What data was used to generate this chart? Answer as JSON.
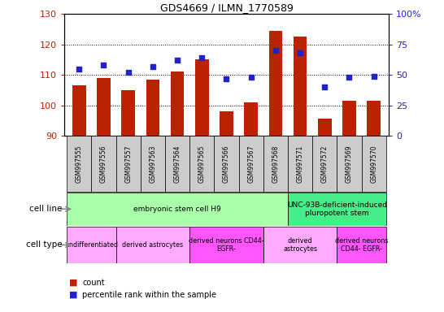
{
  "title": "GDS4669 / ILMN_1770589",
  "samples": [
    "GSM997555",
    "GSM997556",
    "GSM997557",
    "GSM997563",
    "GSM997564",
    "GSM997565",
    "GSM997566",
    "GSM997567",
    "GSM997568",
    "GSM997571",
    "GSM997572",
    "GSM997569",
    "GSM997570"
  ],
  "bar_values": [
    106.5,
    109.0,
    105.0,
    108.5,
    111.0,
    115.0,
    98.0,
    101.0,
    124.5,
    122.5,
    95.5,
    101.5,
    101.5
  ],
  "percentile_values": [
    55,
    58,
    52,
    57,
    62,
    64,
    47,
    48,
    70,
    68,
    40,
    48,
    49
  ],
  "bar_bottom": 90,
  "ylim_left": [
    90,
    130
  ],
  "ylim_right": [
    0,
    100
  ],
  "yticks_left": [
    90,
    100,
    110,
    120,
    130
  ],
  "yticks_right": [
    0,
    25,
    50,
    75,
    100
  ],
  "bar_color": "#BB2200",
  "dot_color": "#2222CC",
  "tick_bg_color": "#CCCCCC",
  "cell_line_groups": [
    {
      "label": "embryonic stem cell H9",
      "start": 0,
      "end": 8,
      "color": "#AAFFAA"
    },
    {
      "label": "UNC-93B-deficient-induced\npluropotent stem",
      "start": 9,
      "end": 12,
      "color": "#44EE88"
    }
  ],
  "cell_type_groups": [
    {
      "label": "undifferentiated",
      "start": 0,
      "end": 1,
      "color": "#FFAAFF"
    },
    {
      "label": "derived astrocytes",
      "start": 2,
      "end": 4,
      "color": "#FFAAFF"
    },
    {
      "label": "derived neurons CD44-\nEGFR-",
      "start": 5,
      "end": 7,
      "color": "#FF55FF"
    },
    {
      "label": "derived\nastrocytes",
      "start": 8,
      "end": 10,
      "color": "#FFAAFF"
    },
    {
      "label": "derived neurons\nCD44- EGFR-",
      "start": 11,
      "end": 12,
      "color": "#FF55FF"
    }
  ],
  "legend_count_label": "count",
  "legend_pct_label": "percentile rank within the sample"
}
